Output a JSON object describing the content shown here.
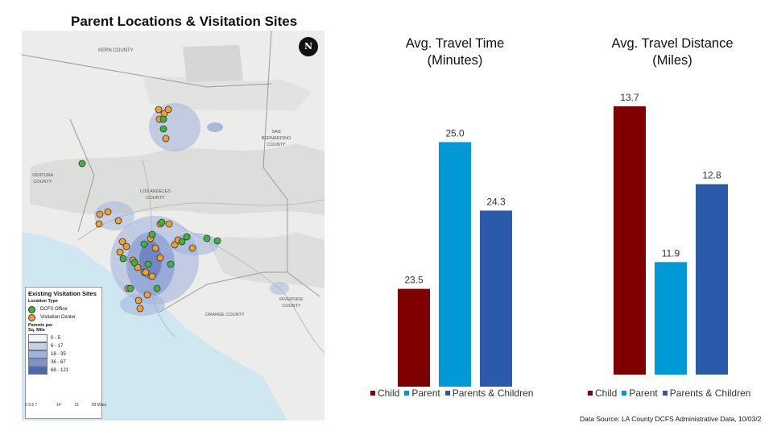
{
  "map": {
    "title": "Parent Locations & Visitation Sites",
    "north_label": "N",
    "labels": {
      "kern": "KERN COUNTY",
      "san_bernardino": "SAN BERNARDINO COUNTY",
      "ventura": "VENTURA COUNTY",
      "los_angeles": "LOS ANGELES COUNTY",
      "riverside": "RIVERSIDE COUNTY",
      "orange": "ORANGE COUNTY"
    },
    "legend": {
      "title": "Existing Visitation Sites",
      "location_type": "Location Type",
      "dcfs_office": "DCFS Office",
      "visitation_center": "Visitation Center",
      "parents_label": "Parents per Sq. Mile",
      "ranges": [
        "0 - 5",
        "6 - 17",
        "18 - 35",
        "36 - 67",
        "68 - 121"
      ]
    },
    "scale": {
      "labels": [
        "0",
        "3.5",
        "7",
        "14",
        "21",
        "28"
      ],
      "unit": "Miles"
    },
    "colors": {
      "dcfs_office": "#3db53d",
      "visitation_center": "#f0a030"
    }
  },
  "chart_data": [
    {
      "type": "bar",
      "title": "Avg. Travel Time (Minutes)",
      "categories": [
        "Child",
        "Parent",
        "Parents & Children"
      ],
      "values": [
        23.5,
        25.0,
        24.3
      ],
      "value_labels": [
        "23.5",
        "25.0",
        "24.3"
      ],
      "ylim": [
        22.5,
        25.3
      ],
      "colors": [
        "#7f0000",
        "#0099d8",
        "#2b5aaa"
      ],
      "legend_position": "bottom"
    },
    {
      "type": "bar",
      "title": "Avg. Travel Distance (Miles)",
      "categories": [
        "Child",
        "Parent",
        "Parents & Children"
      ],
      "values": [
        13.7,
        11.9,
        12.8
      ],
      "value_labels": [
        "13.7",
        "11.9",
        "12.8"
      ],
      "ylim": [
        10.6,
        13.7
      ],
      "colors": [
        "#7f0000",
        "#0099d8",
        "#2b5aaa"
      ],
      "legend_position": "bottom"
    }
  ],
  "source": "Data Source: LA County DCFS Administrative Data, 10/03/2"
}
